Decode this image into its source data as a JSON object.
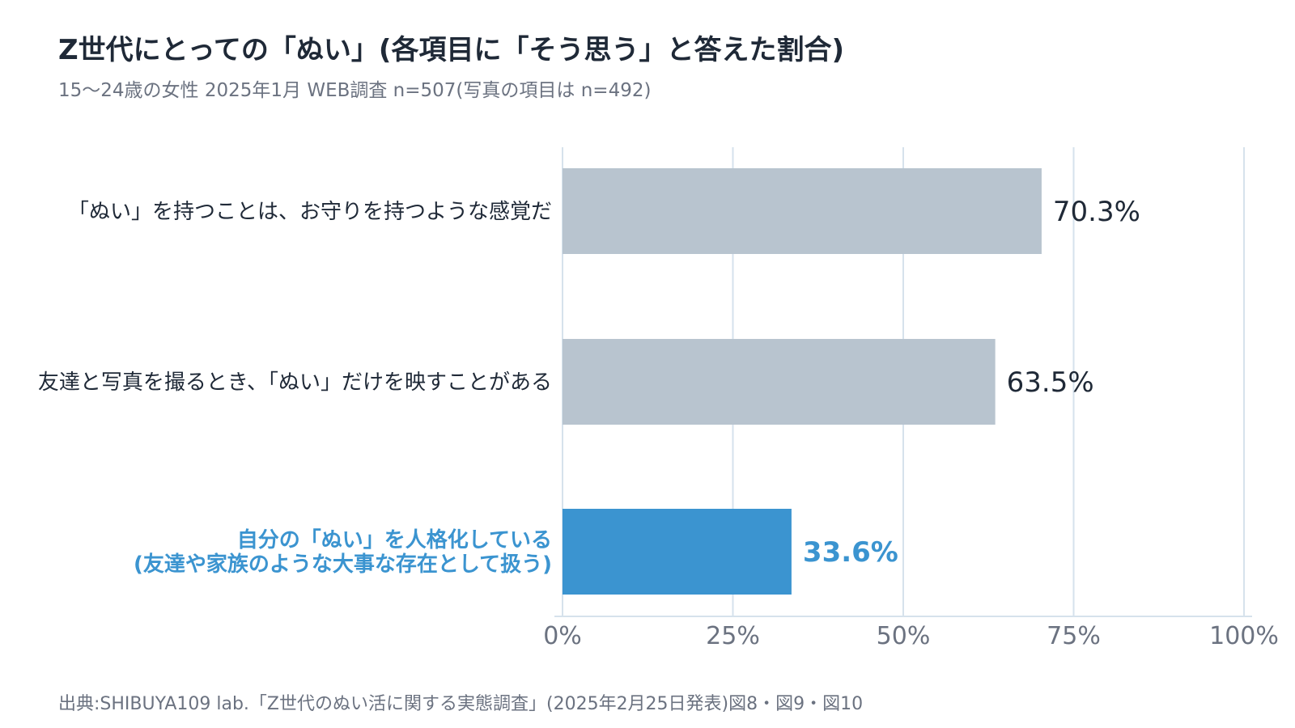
{
  "title": "Z世代にとっての「ぬい」(各項目に「そう思う」と答えた割合)",
  "subtitle": "15～24歳の女性 2025年1月 WEB調査 n=507(写真の項目は n=492)",
  "source": "出典:SHIBUYA109 lab.「Z世代のぬい活に関する実態調査」(2025年2月25日発表)図8・図9・図10",
  "colors": {
    "bar_default": "#b8c4cf",
    "bar_highlight": "#3b94d0",
    "text_default": "#1f2937",
    "text_highlight": "#3b94d0",
    "grid": "#d6e2ec",
    "tick": "#6b7280"
  },
  "chart_data": {
    "type": "bar",
    "orientation": "horizontal",
    "categories": [
      [
        "「ぬい」を持つことは、お守りを持つような感覚だ"
      ],
      [
        "友達と写真を撮るとき、「ぬい」だけを映すことがある"
      ],
      [
        "自分の「ぬい」を人格化している",
        "(友達や家族のような大事な存在として扱う)"
      ]
    ],
    "values": [
      70.3,
      63.5,
      33.6
    ],
    "value_labels": [
      "70.3%",
      "63.5%",
      "33.6%"
    ],
    "highlight": [
      false,
      false,
      true
    ],
    "xlim": [
      0,
      100
    ],
    "xticks": [
      0,
      25,
      50,
      75,
      100
    ],
    "xtick_labels": [
      "0%",
      "25%",
      "50%",
      "75%",
      "100%"
    ],
    "grid": true
  }
}
